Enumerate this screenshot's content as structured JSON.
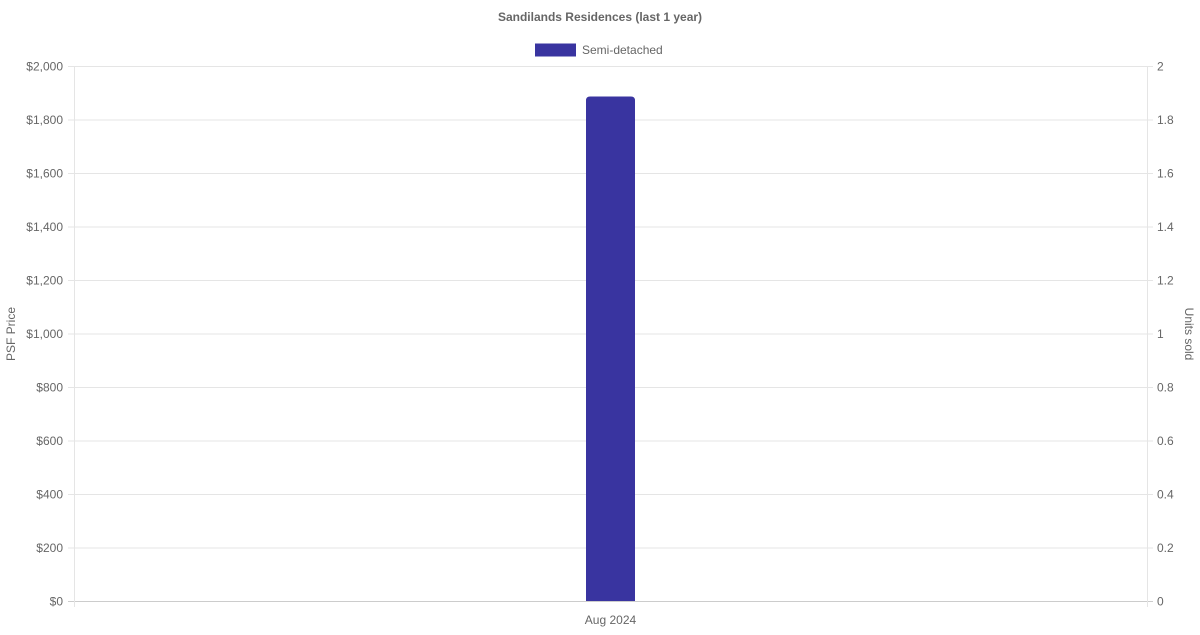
{
  "chart_data": {
    "type": "bar",
    "title": "Sandilands Residences (last 1 year)",
    "categories": [
      "Aug 2024"
    ],
    "series": [
      {
        "name": "Semi-detached",
        "values": [
          1886
        ],
        "color": "#3934a0",
        "axis": "left"
      }
    ],
    "ylabel": "PSF Price",
    "y2label": "Units sold",
    "ylim": [
      0,
      2000
    ],
    "y2lim": [
      0,
      2
    ],
    "yticks": [
      "$0",
      "$200",
      "$400",
      "$600",
      "$800",
      "$1,000",
      "$1,200",
      "$1,400",
      "$1,600",
      "$1,800",
      "$2,000"
    ],
    "y2ticks": [
      "0",
      "0.2",
      "0.4",
      "0.6",
      "0.8",
      "1",
      "1.2",
      "1.4",
      "1.6",
      "1.8",
      "2"
    ],
    "grid": true,
    "legend": "top"
  }
}
